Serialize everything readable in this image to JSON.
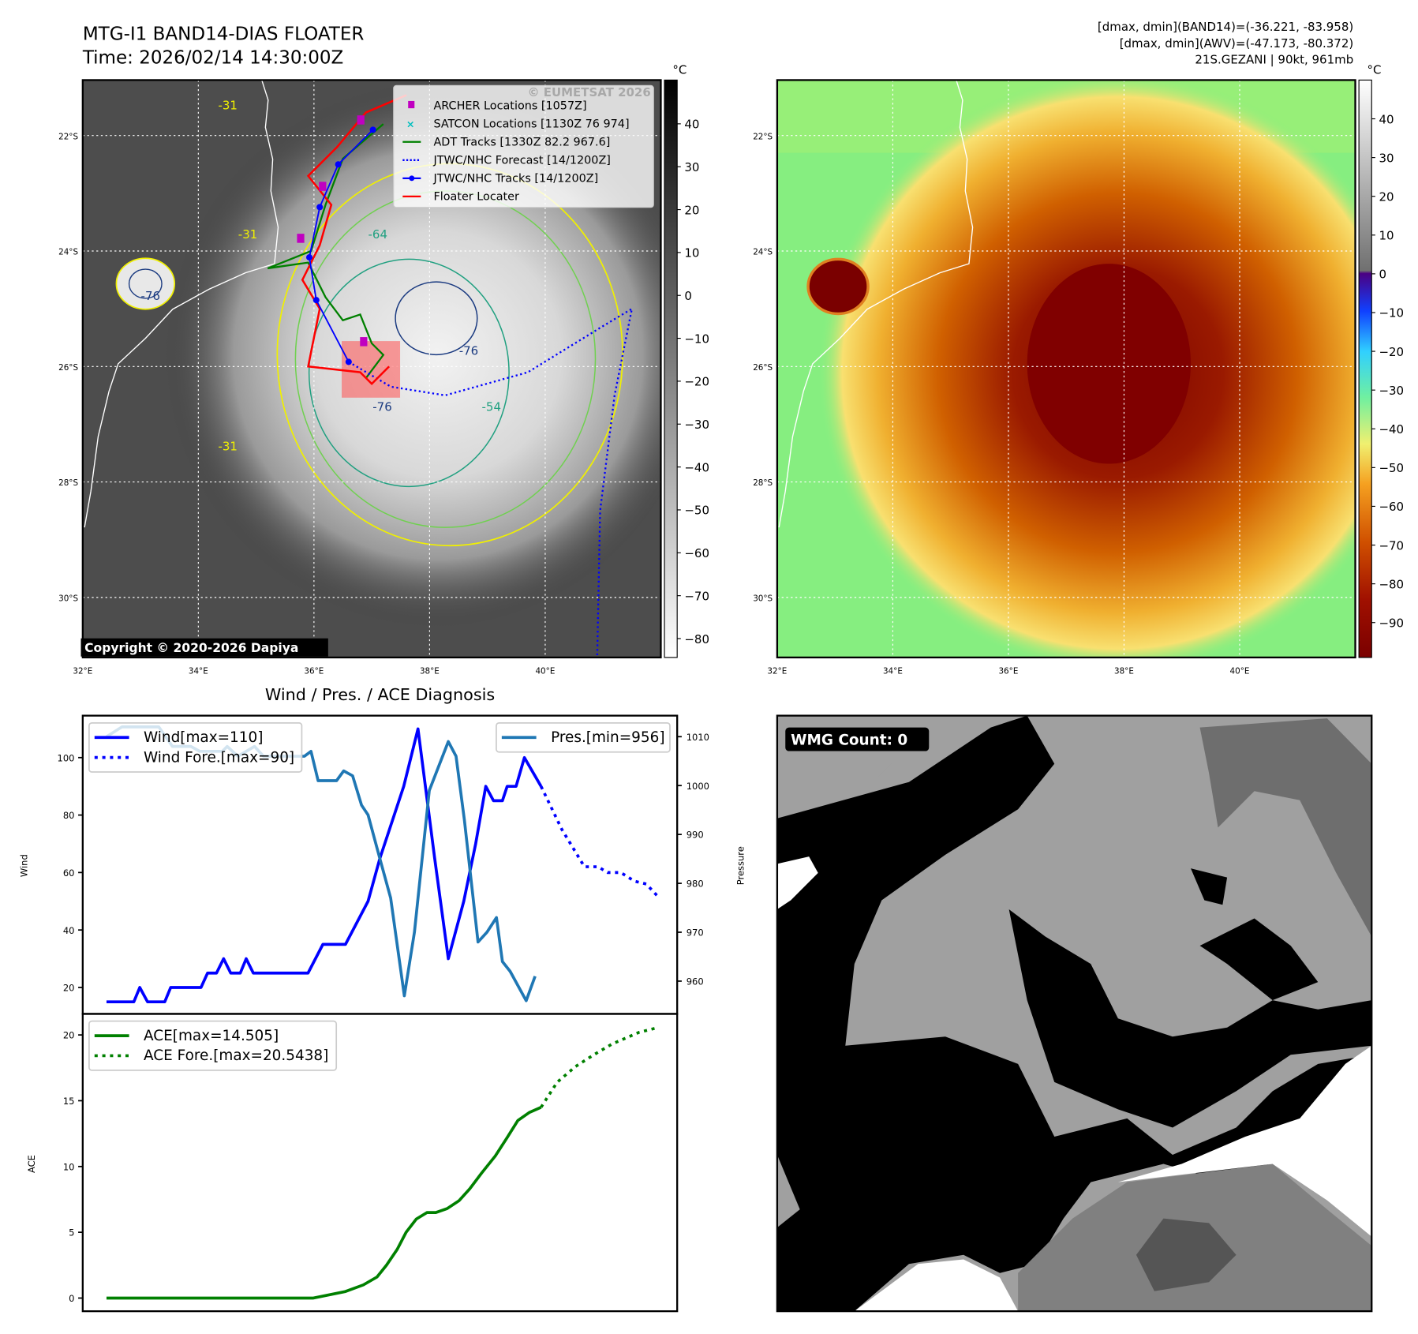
{
  "header": {
    "title": "MTG-I1 BAND14-DIAS FLOATER",
    "time": "Time: 2026/02/14 14:30:00Z",
    "stats_band14": "[dmax, dmin](BAND14)=(-36.221, -83.958)",
    "stats_awv": "[dmax, dmin](AWV)=(-47.173, -80.372)",
    "storm": "21S.GEZANI | 90kt, 961mb"
  },
  "map": {
    "lon_ticks": [
      "32°E",
      "34°E",
      "36°E",
      "38°E",
      "40°E"
    ],
    "lon_values": [
      32,
      34,
      36,
      38,
      40
    ],
    "lat_ticks": [
      "22°S",
      "24°S",
      "26°S",
      "28°S",
      "30°S"
    ],
    "lat_values": [
      -22,
      -24,
      -26,
      -28,
      -30
    ],
    "extent": {
      "lon": [
        32,
        42
      ],
      "lat": [
        -31,
        -21.04
      ]
    },
    "colorbar_unit": "°C",
    "left_colorbar_ticks": [
      "40",
      "30",
      "20",
      "10",
      "0",
      "−10",
      "−20",
      "−30",
      "−40",
      "−50",
      "−60",
      "−70",
      "−80"
    ],
    "left_colorbar_values": [
      40,
      30,
      20,
      10,
      0,
      -10,
      -20,
      -30,
      -40,
      -50,
      -60,
      -70,
      -80
    ],
    "left_colorbar_range": [
      -84.4,
      50.2
    ],
    "right_colorbar_ticks": [
      "40",
      "30",
      "20",
      "10",
      "0",
      "−10",
      "−20",
      "−30",
      "−40",
      "−50",
      "−60",
      "−70",
      "−80",
      "−90"
    ],
    "right_colorbar_values": [
      40,
      30,
      20,
      10,
      0,
      -10,
      -20,
      -30,
      -40,
      -50,
      -60,
      -70,
      -80,
      -90
    ],
    "right_colorbar_range": [
      -99,
      50
    ],
    "contour_labels": [
      "-31",
      "-31",
      "-31",
      "-54",
      "-64",
      "-76",
      "-76",
      "-76"
    ],
    "copyright": "Copyright © 2020-2026 Dapiya",
    "watermark": "© EUMETSAT 2026",
    "legend": [
      {
        "label": "ARCHER Locations [1057Z]",
        "color": "#c000c0"
      },
      {
        "label": "SATCON Locations [1130Z 76 974]",
        "color": "#00bfbf"
      },
      {
        "label": "ADT Tracks [1330Z 82.2 967.6]",
        "color": "#008000"
      },
      {
        "label": "JTWC/NHC Forecast [14/1200Z]",
        "color": "#0000ff"
      },
      {
        "label": "JTWC/NHC Tracks [14/1200Z]",
        "color": "#0000ff"
      },
      {
        "label": "Floater Locater",
        "color": "#ff0000"
      }
    ],
    "tracks": {
      "jtwc": [
        [
          37.02,
          -21.9
        ],
        [
          36.42,
          -22.5
        ],
        [
          36.1,
          -23.24
        ],
        [
          35.92,
          -24.11
        ],
        [
          36.04,
          -24.85
        ],
        [
          36.6,
          -25.92
        ]
      ],
      "jtwc_forecast": [
        [
          36.6,
          -25.92
        ],
        [
          37.33,
          -26.35
        ],
        [
          38.27,
          -26.5
        ],
        [
          39.7,
          -26.1
        ],
        [
          41.0,
          -25.3
        ],
        [
          41.5,
          -25.0
        ],
        [
          41.2,
          -26.5
        ],
        [
          40.95,
          -28.5
        ],
        [
          40.9,
          -31
        ]
      ],
      "adt": [
        [
          37.2,
          -21.8
        ],
        [
          36.5,
          -22.4
        ],
        [
          36.2,
          -23.2
        ],
        [
          35.95,
          -24.0
        ],
        [
          35.2,
          -24.3
        ],
        [
          35.9,
          -24.2
        ],
        [
          36.2,
          -24.8
        ],
        [
          36.5,
          -25.2
        ],
        [
          36.8,
          -25.1
        ],
        [
          37.0,
          -25.6
        ],
        [
          37.2,
          -25.8
        ],
        [
          36.9,
          -26.2
        ]
      ],
      "floater": [
        [
          37.6,
          -21.3
        ],
        [
          36.9,
          -21.6
        ],
        [
          36.4,
          -22.2
        ],
        [
          35.9,
          -22.7
        ],
        [
          36.3,
          -23.2
        ],
        [
          36.1,
          -23.9
        ],
        [
          35.8,
          -24.5
        ],
        [
          36.1,
          -25.0
        ],
        [
          36.0,
          -25.5
        ],
        [
          35.9,
          -26.0
        ],
        [
          36.8,
          -26.1
        ],
        [
          37.0,
          -26.3
        ],
        [
          37.3,
          -26.0
        ]
      ],
      "archer": [
        [
          36.81,
          -21.73
        ],
        [
          36.15,
          -22.88
        ],
        [
          35.77,
          -23.78
        ],
        [
          36.86,
          -25.57
        ]
      ],
      "floater_box": {
        "lon": [
          36.48,
          37.49
        ],
        "lat": [
          -26.54,
          -25.56
        ]
      }
    }
  },
  "chart_data": [
    {
      "type": "line",
      "title": "Wind / Pres. / ACE Diagnosis",
      "xlabel": "",
      "ylabel": "Wind",
      "y2label": "Pressure",
      "xlim": [
        0,
        100
      ],
      "ylim": [
        10.8,
        114.6
      ],
      "y2lim": [
        953.3,
        1014.3
      ],
      "yticks": [
        20,
        40,
        60,
        80,
        100
      ],
      "y2ticks": [
        960,
        970,
        980,
        990,
        1000,
        1010
      ],
      "series": [
        {
          "name": "Wind[max=110]",
          "axis": "left",
          "style": "solid",
          "color": "#0000ff",
          "x": [
            4,
            8.6,
            9.6,
            10.9,
            13.8,
            14.8,
            19.9,
            21,
            22.5,
            23.7,
            24.9,
            26.5,
            27.5,
            28.7,
            37.9,
            40.4,
            44.2,
            48,
            50,
            54,
            56.4,
            59.2,
            61.5,
            64.1,
            66.1,
            67.8,
            69.1,
            70.6,
            71.4,
            72.9,
            74.3,
            77.1
          ],
          "y": [
            15,
            15,
            20,
            15,
            15,
            20,
            20,
            25,
            25,
            30,
            25,
            25,
            30,
            25,
            25,
            35,
            35,
            50,
            65,
            90,
            110,
            65,
            30,
            50,
            70,
            90,
            85,
            85,
            90,
            90,
            100,
            90
          ]
        },
        {
          "name": "Wind Fore.[max=90]",
          "axis": "left",
          "style": "dotted",
          "color": "#0000ff",
          "x": [
            77.1,
            80.6,
            84.4,
            86.7,
            88.3,
            90.5,
            92.8,
            94.8,
            96.6
          ],
          "y": [
            90,
            75,
            62,
            62,
            60,
            60,
            57,
            56,
            52
          ]
        },
        {
          "name": "Pres.[min=956]",
          "axis": "right",
          "style": "solid",
          "color": "#1f77b4",
          "x": [
            4,
            6.6,
            12.8,
            15.1,
            18.2,
            19.7,
            23.5,
            24.3,
            26.1,
            28.9,
            30.4,
            31.9,
            37.3,
            38.4,
            39.6,
            42.7,
            43.9,
            45.4,
            46.9,
            48,
            50,
            51.8,
            54.1,
            55.8,
            58.3,
            61.5,
            62.8,
            64.2,
            66.5,
            68,
            69.6,
            70.6,
            71.9,
            74.6,
            76.1
          ],
          "y": [
            1010,
            1012,
            1012,
            1008,
            1008,
            1007,
            1007,
            1008,
            1006,
            1008,
            1006,
            1006,
            1006,
            1007,
            1001,
            1001,
            1003,
            1002,
            996,
            994,
            985,
            977,
            957,
            970,
            999,
            1009,
            1006,
            993,
            968,
            970,
            973,
            964,
            962,
            956,
            961
          ]
        }
      ],
      "legend": [
        "Wind[max=110]",
        "Wind Fore.[max=90]",
        "Pres.[min=956]"
      ]
    },
    {
      "type": "line",
      "ylabel": "ACE",
      "xlim": [
        0,
        100
      ],
      "ylim": [
        -1,
        21.6
      ],
      "yticks": [
        0,
        5,
        10,
        15,
        20
      ],
      "series": [
        {
          "name": "ACE[max=14.505]",
          "style": "solid",
          "color": "#008000",
          "x": [
            4,
            38.8,
            44.2,
            47.2,
            49.5,
            51.1,
            52.9,
            54.4,
            56.1,
            57.9,
            59.4,
            61.3,
            63.3,
            65.1,
            67.1,
            69.4,
            71.4,
            73.2,
            75.1,
            77.1
          ],
          "y": [
            0,
            0,
            0.5,
            1,
            1.6,
            2.5,
            3.7,
            5,
            6,
            6.5,
            6.5,
            6.8,
            7.4,
            8.3,
            9.5,
            10.8,
            12.2,
            13.5,
            14.1,
            14.5
          ]
        },
        {
          "name": "ACE Fore.[max=20.5438]",
          "style": "dotted",
          "color": "#008000",
          "x": [
            77.1,
            79.8,
            82.9,
            86,
            89,
            93.6,
            96.6
          ],
          "y": [
            14.5,
            16.4,
            17.6,
            18.5,
            19.3,
            20.2,
            20.54
          ]
        }
      ],
      "legend": [
        "ACE[max=14.505]",
        "ACE Fore.[max=20.5438]"
      ]
    }
  ],
  "wmg": {
    "label": "WMG Count: 0"
  }
}
